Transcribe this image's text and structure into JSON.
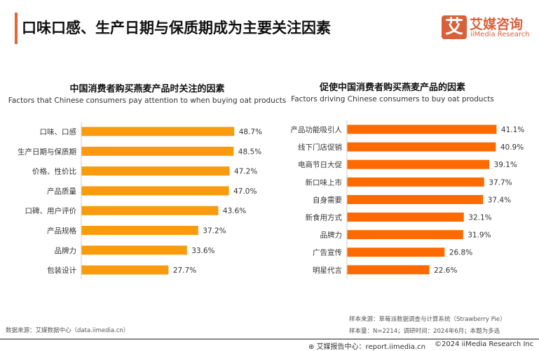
{
  "header": {
    "title": "口味口感、生产日期与保质期成为主要关注因素",
    "logo_mark": "艾",
    "logo_cn": "艾媒咨询",
    "logo_en": "iiMedia Research"
  },
  "colors": {
    "accent": "#e8623a",
    "left_bars": "#f99b0c",
    "right_bars": "#ff6a00"
  },
  "chart_data": [
    {
      "type": "bar",
      "orientation": "horizontal",
      "title": "中国消费者购买燕麦产品时关注的因素",
      "subtitle": "Factors that Chinese consumers pay attention to when buying oat products",
      "categories": [
        "口味、口感",
        "生产日期与保质期",
        "价格、性价比",
        "产品质量",
        "口碑、用户评价",
        "产品规格",
        "品牌力",
        "包装设计"
      ],
      "values": [
        48.7,
        48.5,
        47.2,
        47.0,
        43.6,
        37.2,
        33.6,
        27.7
      ],
      "labels": [
        "48.7%",
        "48.5%",
        "47.2%",
        "47.0%",
        "43.6%",
        "37.2%",
        "33.6%",
        "27.7%"
      ],
      "unit": "%",
      "grid": false
    },
    {
      "type": "bar",
      "orientation": "horizontal",
      "title": "促使中国消费者购买燕麦产品的因素",
      "subtitle": "Factors driving Chinese consumers to buy oat products",
      "categories": [
        "产品功能吸引人",
        "线下门店促销",
        "电商节日大促",
        "新口味上市",
        "自身需要",
        "新食用方式",
        "品牌力",
        "广告宣传",
        "明星代言"
      ],
      "values": [
        41.1,
        40.9,
        39.1,
        37.7,
        37.4,
        32.1,
        31.9,
        26.8,
        22.6
      ],
      "labels": [
        "41.1%",
        "40.9%",
        "39.1%",
        "37.7%",
        "37.4%",
        "32.1%",
        "31.9%",
        "26.8%",
        "22.6%"
      ],
      "unit": "%",
      "grid": false
    }
  ],
  "footer": {
    "source_left": "数据来源：艾媒数据中心（data.iimedia.cn）",
    "sample_source": "样本来源：草莓派数据调查与计算系统（Strawberry Pie）",
    "sample_info": "样本量：N=2214；调研时间：2024年6月；本题为多选",
    "report_center": "艾媒报告中心：report.iimedia.cn",
    "copyright": "©2024  iiMedia Research Inc"
  }
}
